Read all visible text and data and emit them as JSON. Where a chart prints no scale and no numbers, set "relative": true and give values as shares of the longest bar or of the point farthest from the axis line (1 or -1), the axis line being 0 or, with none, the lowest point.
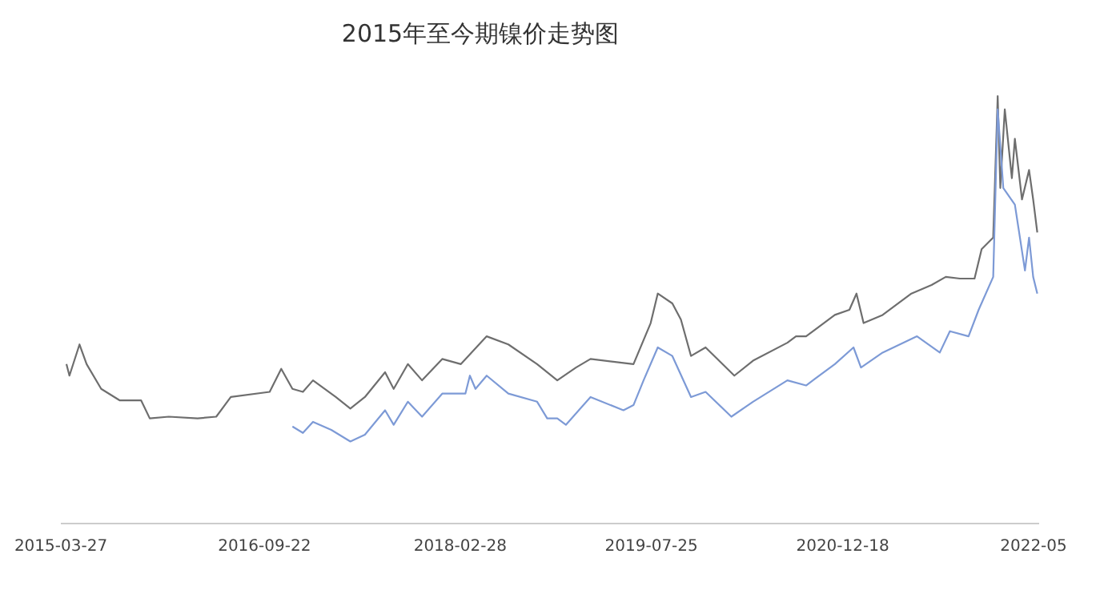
{
  "chart_data": {
    "type": "line",
    "title": "2015年至今期镍价走势图",
    "relative": true,
    "marker": "none",
    "line_style": "solid",
    "xlim": [
      "2015-03-27",
      "2022-05-28"
    ],
    "xticks": [
      {
        "value": "2015-03-27",
        "label": "2015-03-27"
      },
      {
        "value": "2016-09-22",
        "label": "2016-09-22"
      },
      {
        "value": "2018-02-28",
        "label": "2018-02-28"
      },
      {
        "value": "2019-07-25",
        "label": "2019-07-25"
      },
      {
        "value": "2020-12-18",
        "label": "2020-12-18"
      },
      {
        "value": "2022-05-13",
        "label": "2022-05"
      }
    ],
    "series": [
      {
        "color": "#6e6e6e",
        "x": [
          "2015-04-11",
          "2015-04-19",
          "2015-05-16",
          "2015-06-04",
          "2015-07-13",
          "2015-09-01",
          "2015-10-28",
          "2015-11-20",
          "2016-01-10",
          "2016-03-27",
          "2016-05-16",
          "2016-06-24",
          "2016-10-06",
          "2016-11-06",
          "2016-12-06",
          "2017-01-03",
          "2017-01-30",
          "2017-04-01",
          "2017-05-10",
          "2017-06-18",
          "2017-08-11",
          "2017-09-03",
          "2017-10-11",
          "2017-11-18",
          "2018-01-11",
          "2018-03-02",
          "2018-05-10",
          "2018-07-07",
          "2018-09-22",
          "2018-11-15",
          "2019-01-04",
          "2019-02-12",
          "2019-06-07",
          "2019-07-23",
          "2019-08-11",
          "2019-09-19",
          "2019-10-12",
          "2019-11-08",
          "2019-12-17",
          "2020-03-03",
          "2020-04-22",
          "2020-07-23",
          "2020-08-15",
          "2020-09-11",
          "2020-11-27",
          "2021-01-05",
          "2021-01-24",
          "2021-02-12",
          "2021-04-04",
          "2021-06-20",
          "2021-08-13",
          "2021-09-20",
          "2021-10-28",
          "2021-12-06",
          "2021-12-25",
          "2022-01-25",
          "2022-02-06",
          "2022-02-13",
          "2022-02-25",
          "2022-03-16",
          "2022-03-24",
          "2022-04-12",
          "2022-05-01",
          "2022-05-12",
          "2022-05-23"
        ],
        "values": [
          0.373,
          0.346,
          0.419,
          0.373,
          0.315,
          0.288,
          0.288,
          0.246,
          0.25,
          0.246,
          0.25,
          0.296,
          0.308,
          0.362,
          0.315,
          0.308,
          0.335,
          0.296,
          0.269,
          0.296,
          0.354,
          0.315,
          0.373,
          0.335,
          0.385,
          0.373,
          0.438,
          0.419,
          0.373,
          0.335,
          0.365,
          0.385,
          0.373,
          0.469,
          0.538,
          0.515,
          0.477,
          0.392,
          0.412,
          0.346,
          0.381,
          0.423,
          0.438,
          0.438,
          0.488,
          0.5,
          0.538,
          0.469,
          0.488,
          0.538,
          0.558,
          0.577,
          0.573,
          0.573,
          0.642,
          0.669,
          1,
          0.785,
          0.969,
          0.808,
          0.9,
          0.758,
          0.827,
          0.758,
          0.681
        ]
      },
      {
        "color": "#7d9ad6",
        "x": [
          "2016-12-06",
          "2017-01-03",
          "2017-01-30",
          "2017-03-20",
          "2017-05-10",
          "2017-06-18",
          "2017-08-11",
          "2017-09-03",
          "2017-10-11",
          "2017-11-18",
          "2018-01-11",
          "2018-03-14",
          "2018-03-26",
          "2018-04-10",
          "2018-05-10",
          "2018-07-07",
          "2018-09-22",
          "2018-10-19",
          "2018-11-15",
          "2018-12-08",
          "2019-02-12",
          "2019-05-11",
          "2019-06-07",
          "2019-07-04",
          "2019-08-11",
          "2019-09-19",
          "2019-11-08",
          "2019-12-17",
          "2020-02-24",
          "2020-04-22",
          "2020-07-23",
          "2020-09-11",
          "2020-11-27",
          "2021-01-16",
          "2021-02-05",
          "2021-04-04",
          "2021-07-05",
          "2021-09-04",
          "2021-10-01",
          "2021-11-20",
          "2021-12-17",
          "2022-01-25",
          "2022-02-06",
          "2022-02-21",
          "2022-03-24",
          "2022-04-20",
          "2022-05-01",
          "2022-05-12",
          "2022-05-23"
        ],
        "values": [
          0.227,
          0.212,
          0.238,
          0.219,
          0.192,
          0.208,
          0.265,
          0.231,
          0.285,
          0.25,
          0.304,
          0.304,
          0.346,
          0.315,
          0.346,
          0.304,
          0.285,
          0.246,
          0.246,
          0.231,
          0.296,
          0.265,
          0.277,
          0.335,
          0.412,
          0.392,
          0.296,
          0.308,
          0.25,
          0.285,
          0.335,
          0.323,
          0.373,
          0.412,
          0.365,
          0.4,
          0.438,
          0.4,
          0.45,
          0.438,
          0.5,
          0.577,
          0.969,
          0.785,
          0.746,
          0.592,
          0.669,
          0.577,
          0.538
        ]
      }
    ]
  }
}
